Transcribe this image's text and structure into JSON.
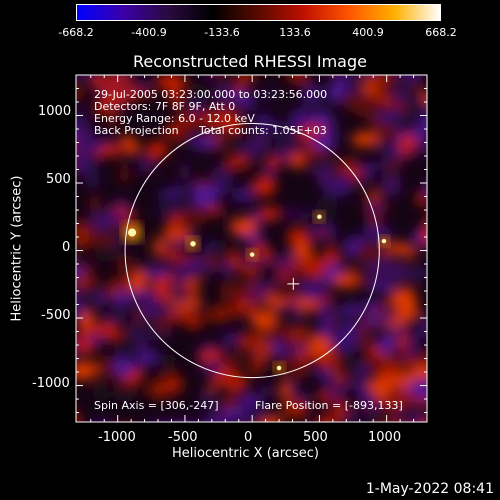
{
  "colorbar": {
    "tick_labels": [
      "-668.2",
      "-400.9",
      "-133.6",
      "133.6",
      "400.9",
      "668.2"
    ],
    "colors": [
      "#0000ff",
      "#3a00aa",
      "#2a0a40",
      "#000000",
      "#5a0a00",
      "#c01000",
      "#ff5500",
      "#ffb000",
      "#ffffff"
    ]
  },
  "title": "Reconstructed RHESSI Image",
  "annotations": {
    "time_range": "29-Jul-2005 03:23:00.000 to 03:23:56.000",
    "detectors": "Detectors: 7F 8F 9F, Att 0",
    "energy_range": "Energy Range: 6.0 - 12.0 keV",
    "method": "Back Projection",
    "total_counts": "Total counts: 1.05E+03",
    "spin_axis": "Spin Axis = [306,-247]",
    "flare_position": "Flare Position = [-893,133]"
  },
  "axes": {
    "xlabel": "Heliocentric X (arcsec)",
    "ylabel": "Heliocentric Y (arcsec)",
    "x_ticks": [
      "-1000",
      "-500",
      "0",
      "500",
      "1000"
    ],
    "y_ticks": [
      "1000",
      "500",
      "0",
      "-500",
      "-1000"
    ],
    "xlim": [
      -1310,
      1300
    ],
    "ylim": [
      -1270,
      1300
    ]
  },
  "solar_disk_radius_arcsec": 945,
  "spin_axis_xy": [
    306,
    -247
  ],
  "flare_position_xy": [
    -893,
    133
  ],
  "timestamp": "1-May-2022 08:41"
}
